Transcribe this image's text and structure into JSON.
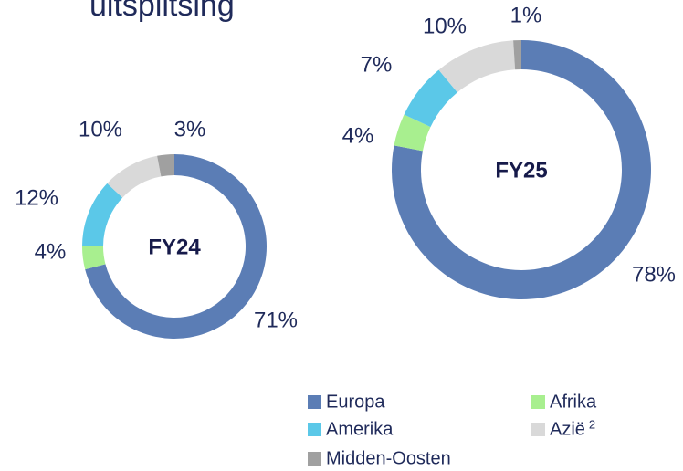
{
  "title": "uitsplitsing",
  "chart_data": [
    {
      "type": "donut",
      "center_label": "FY24",
      "categories": [
        "Europa",
        "Afrika",
        "Amerika",
        "Azië",
        "Midden-Oosten"
      ],
      "category_notes": [
        null,
        null,
        null,
        "2",
        null
      ],
      "colors": [
        "#5b7db5",
        "#a8ef8f",
        "#5bc8e8",
        "#d9d9d9",
        "#a0a0a0"
      ],
      "values": [
        71,
        4,
        12,
        10,
        3
      ],
      "value_labels": [
        "71%",
        "4%",
        "12%",
        "10%",
        "3%"
      ]
    },
    {
      "type": "donut",
      "center_label": "FY25",
      "categories": [
        "Europa",
        "Afrika",
        "Amerika",
        "Azië",
        "Midden-Oosten"
      ],
      "colors": [
        "#5b7db5",
        "#a8ef8f",
        "#5bc8e8",
        "#d9d9d9",
        "#a0a0a0"
      ],
      "values": [
        78,
        4,
        7,
        10,
        1
      ],
      "value_labels": [
        "78%",
        "4%",
        "7%",
        "10%",
        "1%"
      ]
    }
  ]
}
